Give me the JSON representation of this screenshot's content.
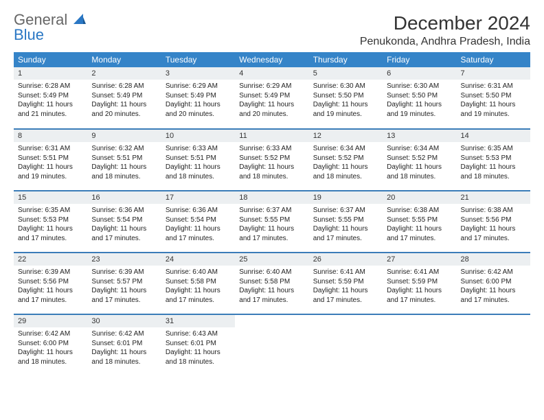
{
  "logo": {
    "word1": "General",
    "word2": "Blue"
  },
  "title": "December 2024",
  "location": "Penukonda, Andhra Pradesh, India",
  "accent_color": "#3584c8",
  "header_bg": "#eceff1",
  "weekdays": [
    "Sunday",
    "Monday",
    "Tuesday",
    "Wednesday",
    "Thursday",
    "Friday",
    "Saturday"
  ],
  "weeks": [
    [
      {
        "n": "1",
        "sr": "6:28 AM",
        "ss": "5:49 PM",
        "dl": "11 hours and 21 minutes."
      },
      {
        "n": "2",
        "sr": "6:28 AM",
        "ss": "5:49 PM",
        "dl": "11 hours and 20 minutes."
      },
      {
        "n": "3",
        "sr": "6:29 AM",
        "ss": "5:49 PM",
        "dl": "11 hours and 20 minutes."
      },
      {
        "n": "4",
        "sr": "6:29 AM",
        "ss": "5:49 PM",
        "dl": "11 hours and 20 minutes."
      },
      {
        "n": "5",
        "sr": "6:30 AM",
        "ss": "5:50 PM",
        "dl": "11 hours and 19 minutes."
      },
      {
        "n": "6",
        "sr": "6:30 AM",
        "ss": "5:50 PM",
        "dl": "11 hours and 19 minutes."
      },
      {
        "n": "7",
        "sr": "6:31 AM",
        "ss": "5:50 PM",
        "dl": "11 hours and 19 minutes."
      }
    ],
    [
      {
        "n": "8",
        "sr": "6:31 AM",
        "ss": "5:51 PM",
        "dl": "11 hours and 19 minutes."
      },
      {
        "n": "9",
        "sr": "6:32 AM",
        "ss": "5:51 PM",
        "dl": "11 hours and 18 minutes."
      },
      {
        "n": "10",
        "sr": "6:33 AM",
        "ss": "5:51 PM",
        "dl": "11 hours and 18 minutes."
      },
      {
        "n": "11",
        "sr": "6:33 AM",
        "ss": "5:52 PM",
        "dl": "11 hours and 18 minutes."
      },
      {
        "n": "12",
        "sr": "6:34 AM",
        "ss": "5:52 PM",
        "dl": "11 hours and 18 minutes."
      },
      {
        "n": "13",
        "sr": "6:34 AM",
        "ss": "5:52 PM",
        "dl": "11 hours and 18 minutes."
      },
      {
        "n": "14",
        "sr": "6:35 AM",
        "ss": "5:53 PM",
        "dl": "11 hours and 18 minutes."
      }
    ],
    [
      {
        "n": "15",
        "sr": "6:35 AM",
        "ss": "5:53 PM",
        "dl": "11 hours and 17 minutes."
      },
      {
        "n": "16",
        "sr": "6:36 AM",
        "ss": "5:54 PM",
        "dl": "11 hours and 17 minutes."
      },
      {
        "n": "17",
        "sr": "6:36 AM",
        "ss": "5:54 PM",
        "dl": "11 hours and 17 minutes."
      },
      {
        "n": "18",
        "sr": "6:37 AM",
        "ss": "5:55 PM",
        "dl": "11 hours and 17 minutes."
      },
      {
        "n": "19",
        "sr": "6:37 AM",
        "ss": "5:55 PM",
        "dl": "11 hours and 17 minutes."
      },
      {
        "n": "20",
        "sr": "6:38 AM",
        "ss": "5:55 PM",
        "dl": "11 hours and 17 minutes."
      },
      {
        "n": "21",
        "sr": "6:38 AM",
        "ss": "5:56 PM",
        "dl": "11 hours and 17 minutes."
      }
    ],
    [
      {
        "n": "22",
        "sr": "6:39 AM",
        "ss": "5:56 PM",
        "dl": "11 hours and 17 minutes."
      },
      {
        "n": "23",
        "sr": "6:39 AM",
        "ss": "5:57 PM",
        "dl": "11 hours and 17 minutes."
      },
      {
        "n": "24",
        "sr": "6:40 AM",
        "ss": "5:58 PM",
        "dl": "11 hours and 17 minutes."
      },
      {
        "n": "25",
        "sr": "6:40 AM",
        "ss": "5:58 PM",
        "dl": "11 hours and 17 minutes."
      },
      {
        "n": "26",
        "sr": "6:41 AM",
        "ss": "5:59 PM",
        "dl": "11 hours and 17 minutes."
      },
      {
        "n": "27",
        "sr": "6:41 AM",
        "ss": "5:59 PM",
        "dl": "11 hours and 17 minutes."
      },
      {
        "n": "28",
        "sr": "6:42 AM",
        "ss": "6:00 PM",
        "dl": "11 hours and 17 minutes."
      }
    ],
    [
      {
        "n": "29",
        "sr": "6:42 AM",
        "ss": "6:00 PM",
        "dl": "11 hours and 18 minutes."
      },
      {
        "n": "30",
        "sr": "6:42 AM",
        "ss": "6:01 PM",
        "dl": "11 hours and 18 minutes."
      },
      {
        "n": "31",
        "sr": "6:43 AM",
        "ss": "6:01 PM",
        "dl": "11 hours and 18 minutes."
      },
      null,
      null,
      null,
      null
    ]
  ],
  "labels": {
    "sunrise": "Sunrise:",
    "sunset": "Sunset:",
    "daylight": "Daylight:"
  }
}
